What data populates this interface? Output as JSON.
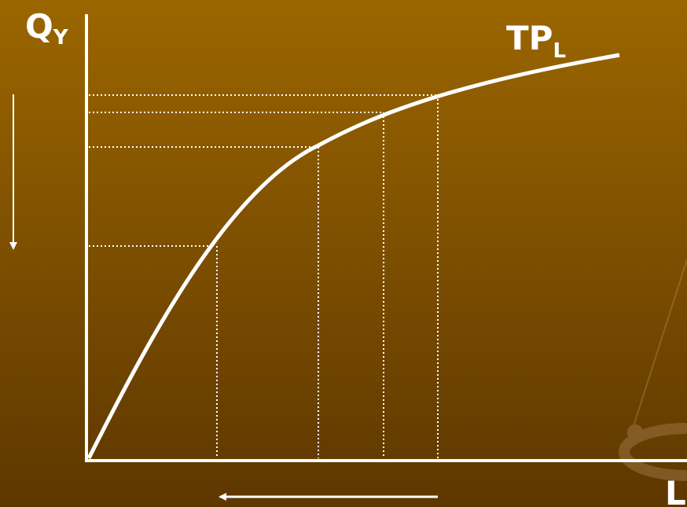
{
  "y_axis_label": {
    "main": "Q",
    "sub": "Y"
  },
  "curve_label": {
    "main": "TP",
    "sub": "L"
  },
  "x_axis_label": "L"
}
